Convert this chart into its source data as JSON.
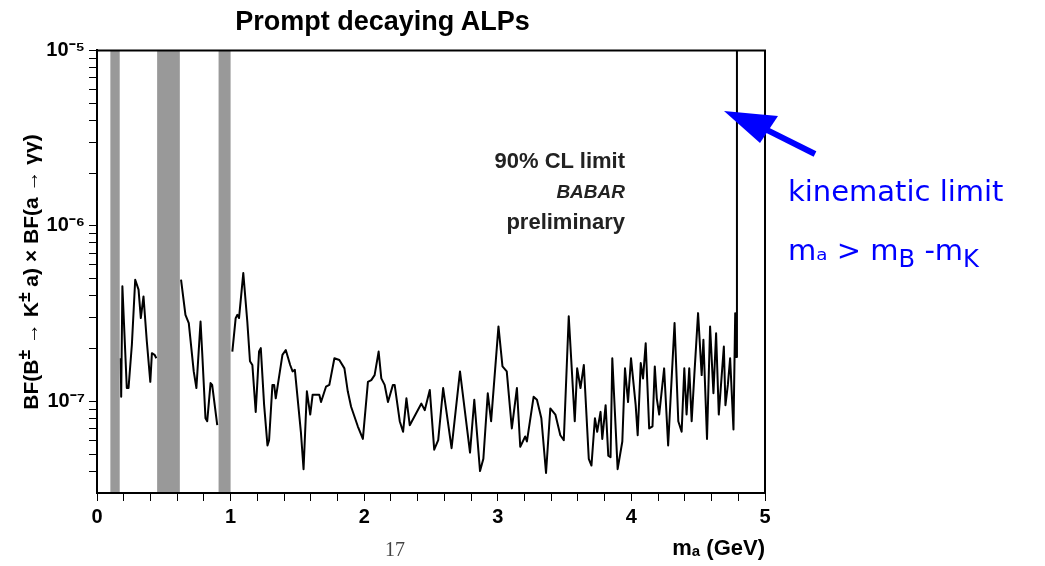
{
  "chart_data": {
    "type": "line",
    "title": "Prompt decaying ALPs",
    "xlabel": "mₐ (GeV)",
    "ylabel": "BF(B$^{±}$ → K$^{±}$ a) × BF(a → γγ)",
    "log": "y",
    "xlim": [
      0,
      5
    ],
    "ylim": [
      3e-08,
      1e-05
    ],
    "xticks": [
      0,
      {
        "value": 0.2,
        "label": null
      },
      {
        "value": 0.4,
        "label": null
      },
      {
        "value": 0.6,
        "label": null
      },
      {
        "value": 0.8,
        "label": null
      },
      1,
      {
        "value": 1.2,
        "label": null
      },
      {
        "value": 1.4,
        "label": null
      },
      {
        "value": 1.6,
        "label": null
      },
      {
        "value": 1.8,
        "label": null
      },
      2,
      {
        "value": 2.2,
        "label": null
      },
      {
        "value": 2.4,
        "label": null
      },
      {
        "value": 2.6,
        "label": null
      },
      {
        "value": 2.8,
        "label": null
      },
      3,
      {
        "value": 3.2,
        "label": null
      },
      {
        "value": 3.4,
        "label": null
      },
      {
        "value": 3.6,
        "label": null
      },
      {
        "value": 3.8,
        "label": null
      },
      4,
      {
        "value": 4.2,
        "label": null
      },
      {
        "value": 4.4,
        "label": null
      },
      {
        "value": 4.6,
        "label": null
      },
      {
        "value": 4.8,
        "label": null
      },
      5
    ],
    "yticks": [
      {
        "value": 4e-08,
        "label": null
      },
      {
        "value": 5e-08,
        "label": null
      },
      {
        "value": 6e-08,
        "label": null
      },
      {
        "value": 7e-08,
        "label": null
      },
      {
        "value": 8e-08,
        "label": null
      },
      {
        "value": 9e-08,
        "label": null
      },
      {
        "value": 1e-07,
        "label": "10⁻⁷"
      },
      {
        "value": 2e-07,
        "label": null
      },
      {
        "value": 3e-07,
        "label": null
      },
      {
        "value": 4e-07,
        "label": null
      },
      {
        "value": 5e-07,
        "label": null
      },
      {
        "value": 6e-07,
        "label": null
      },
      {
        "value": 7e-07,
        "label": null
      },
      {
        "value": 8e-07,
        "label": null
      },
      {
        "value": 9e-07,
        "label": null
      },
      {
        "value": 1e-06,
        "label": "10⁻⁶"
      },
      {
        "value": 2e-06,
        "label": null
      },
      {
        "value": 3e-06,
        "label": null
      },
      {
        "value": 4e-06,
        "label": null
      },
      {
        "value": 5e-06,
        "label": null
      },
      {
        "value": 6e-06,
        "label": null
      },
      {
        "value": 7e-06,
        "label": null
      },
      {
        "value": 8e-06,
        "label": null
      },
      {
        "value": 9e-06,
        "label": null
      },
      {
        "value": 1e-05,
        "label": "10⁻⁵"
      }
    ],
    "bands": [
      {
        "axis": "x",
        "from": 0.1,
        "to": 0.17,
        "color": "#999999"
      },
      {
        "axis": "x",
        "from": 0.45,
        "to": 0.62,
        "color": "#999999"
      },
      {
        "axis": "x",
        "from": 0.91,
        "to": 1.0,
        "color": "#999999"
      }
    ],
    "annotations": [
      "90% CL limit",
      "BABAR",
      "preliminary",
      "kinematic limit",
      "mₐ > m$_{B}$ -m$_{K}$",
      "17"
    ],
    "series": [
      {
        "color": "#000000",
        "x": [
          0.178,
          0.181,
          0.19,
          0.223,
          0.236,
          0.261,
          0.286,
          0.311,
          0.328,
          0.348,
          0.373,
          0.399,
          0.411,
          0.431,
          0.444,
          0.53,
          0.629,
          0.662,
          0.687,
          0.724,
          0.744,
          0.775,
          0.787,
          0.812,
          0.825,
          0.85,
          0.862,
          0.9,
          0.96,
          1.013,
          1.038,
          1.05,
          1.063,
          1.095,
          1.125,
          1.145,
          1.163,
          1.188,
          1.213,
          1.226,
          1.251,
          1.276,
          1.288,
          1.313,
          1.326,
          1.338,
          1.388,
          1.413,
          1.446,
          1.464,
          1.481,
          1.526,
          1.546,
          1.571,
          1.596,
          1.614,
          1.664,
          1.677,
          1.714,
          1.739,
          1.777,
          1.814,
          1.852,
          1.877,
          1.902,
          1.952,
          1.99,
          2.028,
          2.053,
          2.078,
          2.108,
          2.128,
          2.153,
          2.178,
          2.215,
          2.228,
          2.266,
          2.291,
          2.316,
          2.341,
          2.428,
          2.453,
          2.491,
          2.524,
          2.554,
          2.591,
          2.654,
          2.717,
          2.792,
          2.824,
          2.867,
          2.892,
          2.925,
          2.95,
          3.005,
          3.035,
          3.067,
          3.105,
          3.143,
          3.168,
          3.205,
          3.218,
          3.268,
          3.293,
          3.326,
          3.361,
          3.393,
          3.431,
          3.468,
          3.494,
          3.531,
          3.576,
          3.594,
          3.619,
          3.644,
          3.681,
          3.701,
          3.727,
          3.744,
          3.769,
          3.782,
          3.807,
          3.827,
          3.844,
          3.857,
          3.897,
          3.932,
          3.952,
          3.975,
          3.997,
          4.032,
          4.047,
          4.07,
          4.087,
          4.107,
          4.133,
          4.158,
          4.175,
          4.19,
          4.208,
          4.245,
          4.275,
          4.323,
          4.351,
          4.376,
          4.396,
          4.413,
          4.433,
          4.451,
          4.471,
          4.499,
          4.526,
          4.539,
          4.566,
          4.589,
          4.614,
          4.634,
          4.654,
          4.692,
          4.704,
          4.722,
          4.739,
          4.764,
          4.777,
          4.784,
          4.79,
          4.79
        ],
        "values": [
          1.76e-07,
          1.06e-07,
          4.52e-07,
          1.19e-07,
          1.19e-07,
          2.1e-07,
          4.93e-07,
          4.33e-07,
          2.98e-07,
          3.96e-07,
          2.19e-07,
          1.29e-07,
          1.88e-07,
          1.84e-07,
          1.76e-07,
          null,
          4.93e-07,
          3.11e-07,
          2.79e-07,
          1.48e-07,
          1.19e-07,
          2.85e-07,
          1.92e-07,
          8e-08,
          7.7e-08,
          1.27e-07,
          1.24e-07,
          7.3e-08,
          null,
          1.92e-07,
          2.98e-07,
          3.11e-07,
          2.98e-07,
          5.38e-07,
          2.85e-07,
          1.69e-07,
          1.61e-07,
          8.7e-08,
          1.92e-07,
          2.01e-07,
          9.5e-08,
          5.6e-08,
          6e-08,
          1.24e-07,
          1.24e-07,
          1.04e-07,
          1.84e-07,
          1.96e-07,
          1.61e-07,
          1.48e-07,
          1.51e-07,
          6.7e-08,
          4.1e-08,
          1.14e-07,
          8.4e-08,
          1.09e-07,
          1.09e-07,
          9.9e-08,
          1.21e-07,
          1.24e-07,
          1.76e-07,
          1.72e-07,
          1.54e-07,
          1.14e-07,
          9.3e-08,
          7.2e-08,
          6.1e-08,
          1.29e-07,
          1.32e-07,
          1.41e-07,
          1.92e-07,
          1.35e-07,
          1.24e-07,
          9.9e-08,
          1.24e-07,
          1.24e-07,
          7.7e-08,
          6.7e-08,
          1.04e-07,
          7.3e-08,
          9.7e-08,
          8.9e-08,
          1.16e-07,
          5.3e-08,
          6e-08,
          1.19e-07,
          5.4e-08,
          1.48e-07,
          5.1e-08,
          1.02e-07,
          4e-08,
          4.7e-08,
          1.11e-07,
          7.7e-08,
          2.67e-07,
          1.58e-07,
          1.48e-07,
          7e-08,
          1.19e-07,
          5.5e-08,
          6.3e-08,
          5.9e-08,
          1.06e-07,
          1.02e-07,
          8e-08,
          3.9e-08,
          9.1e-08,
          8.4e-08,
          6.4e-08,
          6e-08,
          3.05e-07,
          7.7e-08,
          1.54e-07,
          1.19e-07,
          1.61e-07,
          4.7e-08,
          4.3e-08,
          8e-08,
          6.7e-08,
          8.7e-08,
          6.1e-08,
          9.5e-08,
          4.9e-08,
          4.8e-08,
          1.76e-07,
          4.1e-08,
          5.9e-08,
          1.54e-07,
          9.9e-08,
          1.76e-07,
          9.5e-08,
          6.4e-08,
          1.65e-07,
          1.35e-07,
          2.14e-07,
          7e-08,
          7.2e-08,
          1.58e-07,
          1.04e-07,
          8.4e-08,
          1.54e-07,
          5.6e-08,
          2.79e-07,
          7.7e-08,
          6.7e-08,
          1.54e-07,
          8.4e-08,
          1.54e-07,
          7.7e-08,
          1.41e-07,
          3.18e-07,
          1.41e-07,
          2.24e-07,
          6.1e-08,
          2.67e-07,
          1.11e-07,
          2.44e-07,
          8.4e-08,
          2.05e-07,
          9.5e-08,
          1.24e-07,
          1.76e-07,
          6.9e-08,
          3.18e-07,
          1.79e-07,
          1.79e-07,
          1e-05
        ]
      }
    ]
  }
}
